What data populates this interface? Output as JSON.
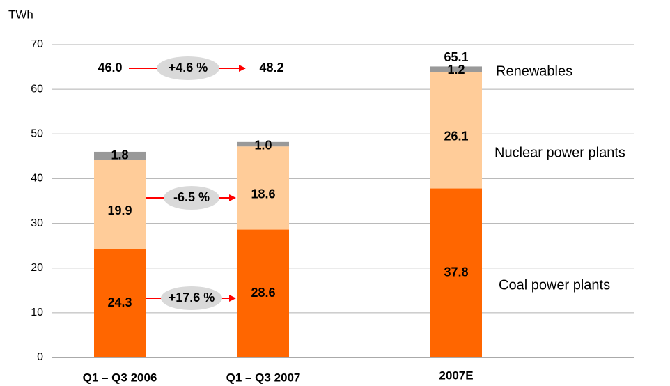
{
  "chart_data": {
    "type": "stacked_bar",
    "y_label": "TWh",
    "categories": [
      "Q1 – Q3 2006",
      "Q1 – Q3 2007",
      "2007E"
    ],
    "series": [
      {
        "name": "Coal power plants",
        "color": "#ff6600",
        "values": [
          24.3,
          28.6,
          37.8
        ]
      },
      {
        "name": "Nuclear power plants",
        "color": "#ffcc99",
        "values": [
          19.9,
          18.6,
          26.1
        ]
      },
      {
        "name": "Renewables",
        "color": "#999999",
        "values": [
          1.8,
          1.0,
          1.2
        ],
        "value_labels": [
          "1.8",
          "1.0",
          "1.2"
        ]
      }
    ],
    "totals": {
      "values": [
        46.0,
        48.2,
        65.1
      ],
      "value_labels": [
        "46.0",
        "48.2",
        "65.1"
      ]
    },
    "annotations": [
      "+4.6 %",
      "-6.5 %",
      "+17.6 %"
    ],
    "ylim": [
      0,
      70
    ],
    "yticks": [
      0,
      10,
      20,
      30,
      40,
      50,
      60,
      70
    ],
    "grid": true
  }
}
